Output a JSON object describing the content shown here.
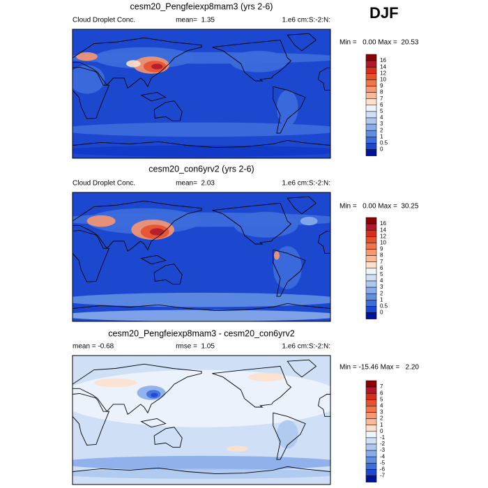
{
  "figure_label": "DJF",
  "panels": [
    {
      "title": "cesm20_Pengfeiexp8mam3 (yrs 2-6)",
      "left": "Cloud Droplet Conc.",
      "center": "mean=  1.35",
      "right": "1.e6 cm:S:-2:N:",
      "minmax": "Min =   0.00 Max =  20.53",
      "colorbar": {
        "labels": [
          16,
          14,
          12,
          10,
          9,
          8,
          7,
          6,
          5,
          4,
          3,
          2,
          1,
          0.5,
          0
        ]
      }
    },
    {
      "title": "cesm20_con6yrv2 (yrs 2-6)",
      "left": "Cloud Droplet Conc.",
      "center": "mean=  2.03",
      "right": "1.e6 cm:S:-2:N:",
      "minmax": "Min =   0.00 Max =  30.25",
      "colorbar": {
        "labels": [
          16,
          14,
          12,
          10,
          9,
          8,
          7,
          6,
          5,
          4,
          3,
          2,
          1,
          0.5,
          0
        ]
      }
    },
    {
      "title": "cesm20_Pengfeiexp8mam3 - cesm20_con6yrv2",
      "left": "mean = -0.68",
      "center": "rmse =  1.05",
      "right": "1.e6 cm:S:-2:N:",
      "minmax": "Min = -15.46 Max =   2.20",
      "colorbar": {
        "labels": [
          7,
          6,
          5,
          4,
          3,
          2,
          1,
          0,
          -1,
          -2,
          -3,
          -4,
          -5,
          -6,
          -7
        ]
      }
    }
  ],
  "colorbar_colors": [
    "#8b0000",
    "#b2182b",
    "#d6301d",
    "#e8512e",
    "#f4744a",
    "#f89770",
    "#fbb99a",
    "#fde0cc",
    "#eef4fc",
    "#cfe0f6",
    "#adc8ef",
    "#88acea",
    "#628ee1",
    "#3d6ddb",
    "#1c48d0",
    "#00129a"
  ]
}
